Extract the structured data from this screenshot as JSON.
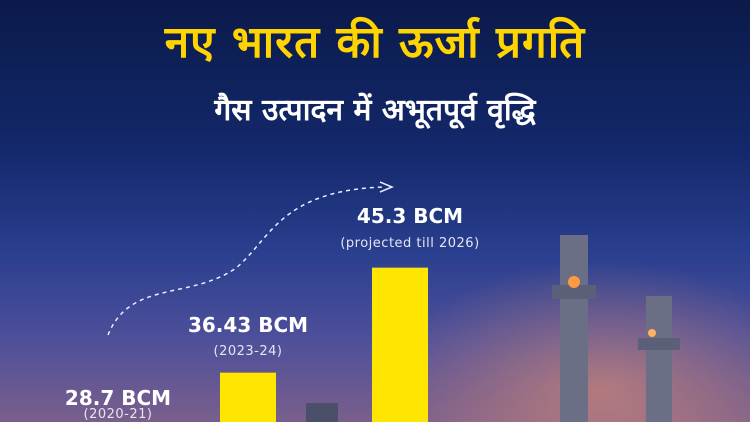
{
  "title": "नए भारत की ऊर्जा प्रगति",
  "subtitle": "गैस उत्पादन में अभूतपूर्व वृद्धि",
  "colors": {
    "bar": "#ffe600",
    "title": "#ffd400",
    "background": "#13286b"
  },
  "chart_data": {
    "type": "bar",
    "categories": [
      "(2020-21)",
      "(2023-24)",
      "(projected till 2026)"
    ],
    "values": [
      28.7,
      36.43,
      45.3
    ],
    "data_labels": [
      "28.7 BCM",
      "36.43 BCM",
      "45.3 BCM"
    ],
    "unit": "BCM",
    "annotation": "dashed growth arrow",
    "grid": false
  }
}
